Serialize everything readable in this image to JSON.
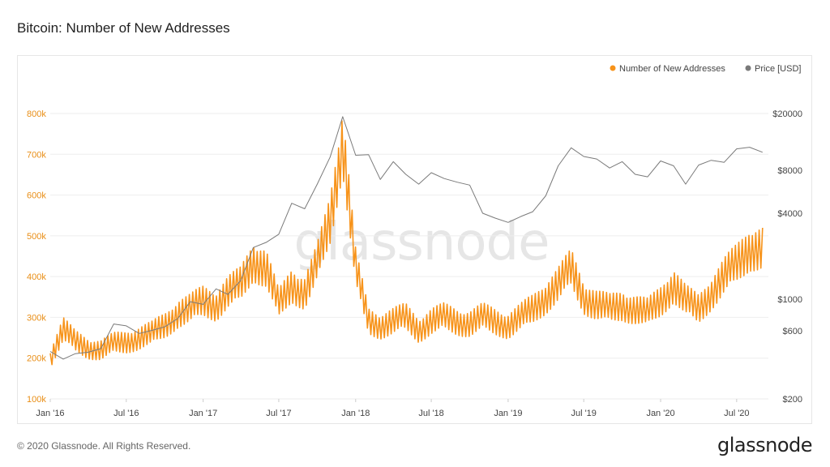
{
  "page": {
    "title": "Bitcoin: Number of New Addresses",
    "copyright": "© 2020 Glassnode. All Rights Reserved.",
    "brand": "glassnode",
    "watermark": "glassnode"
  },
  "colors": {
    "addresses": "#f7931a",
    "price": "#7a7a7a",
    "left_axis_text": "#e98e16",
    "grid": "#eeeeee"
  },
  "chart_data": {
    "type": "line",
    "title": "Bitcoin: Number of New Addresses",
    "legend_position": "top-right",
    "grid": true,
    "x_ticks": [
      "Jan '16",
      "Jul '16",
      "Jan '17",
      "Jul '17",
      "Jan '18",
      "Jul '18",
      "Jan '19",
      "Jul '19",
      "Jan '20",
      "Jul '20"
    ],
    "x_range": [
      "2016-01-01",
      "2020-09-15"
    ],
    "y_left": {
      "scale": "linear",
      "ylim": [
        100000,
        800000
      ],
      "ticks": [
        "100k",
        "200k",
        "300k",
        "400k",
        "500k",
        "600k",
        "700k",
        "800k"
      ]
    },
    "y_right": {
      "scale": "log",
      "ylim": [
        200,
        20000
      ],
      "ticks": [
        "$200",
        "$600",
        "$1000",
        "$4000",
        "$8000",
        "$20000"
      ]
    },
    "series": [
      {
        "name": "Number of New Addresses",
        "axis": "left",
        "points": [
          [
            "2016-01-01",
            200000
          ],
          [
            "2016-02-01",
            270000
          ],
          [
            "2016-03-01",
            240000
          ],
          [
            "2016-04-01",
            225000
          ],
          [
            "2016-05-01",
            220000
          ],
          [
            "2016-06-01",
            235000
          ],
          [
            "2016-07-01",
            240000
          ],
          [
            "2016-08-01",
            250000
          ],
          [
            "2016-09-01",
            260000
          ],
          [
            "2016-10-01",
            280000
          ],
          [
            "2016-11-01",
            310000
          ],
          [
            "2016-12-01",
            320000
          ],
          [
            "2017-01-01",
            340000
          ],
          [
            "2017-02-01",
            330000
          ],
          [
            "2017-03-01",
            360000
          ],
          [
            "2017-04-01",
            380000
          ],
          [
            "2017-05-01",
            440000
          ],
          [
            "2017-06-01",
            420000
          ],
          [
            "2017-07-01",
            330000
          ],
          [
            "2017-08-01",
            380000
          ],
          [
            "2017-09-01",
            360000
          ],
          [
            "2017-10-01",
            430000
          ],
          [
            "2017-11-01",
            540000
          ],
          [
            "2017-12-01",
            740000
          ],
          [
            "2018-01-01",
            420000
          ],
          [
            "2018-02-01",
            290000
          ],
          [
            "2018-03-01",
            280000
          ],
          [
            "2018-04-01",
            290000
          ],
          [
            "2018-05-01",
            300000
          ],
          [
            "2018-06-01",
            270000
          ],
          [
            "2018-07-01",
            290000
          ],
          [
            "2018-08-01",
            300000
          ],
          [
            "2018-09-01",
            290000
          ],
          [
            "2018-10-01",
            285000
          ],
          [
            "2018-11-01",
            300000
          ],
          [
            "2018-12-01",
            290000
          ],
          [
            "2019-01-01",
            280000
          ],
          [
            "2019-02-01",
            300000
          ],
          [
            "2019-03-01",
            320000
          ],
          [
            "2019-04-01",
            350000
          ],
          [
            "2019-05-01",
            380000
          ],
          [
            "2019-06-01",
            420000
          ],
          [
            "2019-07-01",
            350000
          ],
          [
            "2019-08-01",
            330000
          ],
          [
            "2019-09-01",
            320000
          ],
          [
            "2019-10-01",
            330000
          ],
          [
            "2019-11-01",
            320000
          ],
          [
            "2019-12-01",
            310000
          ],
          [
            "2020-01-01",
            340000
          ],
          [
            "2020-02-01",
            380000
          ],
          [
            "2020-03-01",
            340000
          ],
          [
            "2020-04-01",
            320000
          ],
          [
            "2020-05-01",
            360000
          ],
          [
            "2020-06-01",
            400000
          ],
          [
            "2020-07-01",
            430000
          ],
          [
            "2020-08-01",
            470000
          ],
          [
            "2020-09-01",
            470000
          ]
        ]
      },
      {
        "name": "Price [USD]",
        "axis": "right",
        "points": [
          [
            "2016-01-01",
            430
          ],
          [
            "2016-02-01",
            380
          ],
          [
            "2016-03-01",
            415
          ],
          [
            "2016-04-01",
            425
          ],
          [
            "2016-05-01",
            450
          ],
          [
            "2016-06-01",
            670
          ],
          [
            "2016-07-01",
            650
          ],
          [
            "2016-08-01",
            575
          ],
          [
            "2016-09-01",
            605
          ],
          [
            "2016-10-01",
            640
          ],
          [
            "2016-11-01",
            730
          ],
          [
            "2016-12-01",
            960
          ],
          [
            "2017-01-01",
            920
          ],
          [
            "2017-02-01",
            1180
          ],
          [
            "2017-03-01",
            1080
          ],
          [
            "2017-04-01",
            1350
          ],
          [
            "2017-05-01",
            2300
          ],
          [
            "2017-06-01",
            2500
          ],
          [
            "2017-07-01",
            2850
          ],
          [
            "2017-08-01",
            4700
          ],
          [
            "2017-09-01",
            4300
          ],
          [
            "2017-10-01",
            6400
          ],
          [
            "2017-11-01",
            9900
          ],
          [
            "2017-12-01",
            19000
          ],
          [
            "2018-01-01",
            10200
          ],
          [
            "2018-02-01",
            10300
          ],
          [
            "2018-03-01",
            6900
          ],
          [
            "2018-04-01",
            9200
          ],
          [
            "2018-05-01",
            7500
          ],
          [
            "2018-06-01",
            6400
          ],
          [
            "2018-07-01",
            7700
          ],
          [
            "2018-08-01",
            7000
          ],
          [
            "2018-09-01",
            6600
          ],
          [
            "2018-10-01",
            6300
          ],
          [
            "2018-11-01",
            4000
          ],
          [
            "2018-12-01",
            3700
          ],
          [
            "2019-01-01",
            3450
          ],
          [
            "2019-02-01",
            3800
          ],
          [
            "2019-03-01",
            4100
          ],
          [
            "2019-04-01",
            5300
          ],
          [
            "2019-05-01",
            8600
          ],
          [
            "2019-06-01",
            11500
          ],
          [
            "2019-07-01",
            10000
          ],
          [
            "2019-08-01",
            9600
          ],
          [
            "2019-09-01",
            8300
          ],
          [
            "2019-10-01",
            9200
          ],
          [
            "2019-11-01",
            7500
          ],
          [
            "2019-12-01",
            7200
          ],
          [
            "2020-01-01",
            9300
          ],
          [
            "2020-02-01",
            8600
          ],
          [
            "2020-03-01",
            6400
          ],
          [
            "2020-04-01",
            8700
          ],
          [
            "2020-05-01",
            9400
          ],
          [
            "2020-06-01",
            9100
          ],
          [
            "2020-07-01",
            11300
          ],
          [
            "2020-08-01",
            11600
          ],
          [
            "2020-09-01",
            10700
          ]
        ]
      }
    ]
  }
}
